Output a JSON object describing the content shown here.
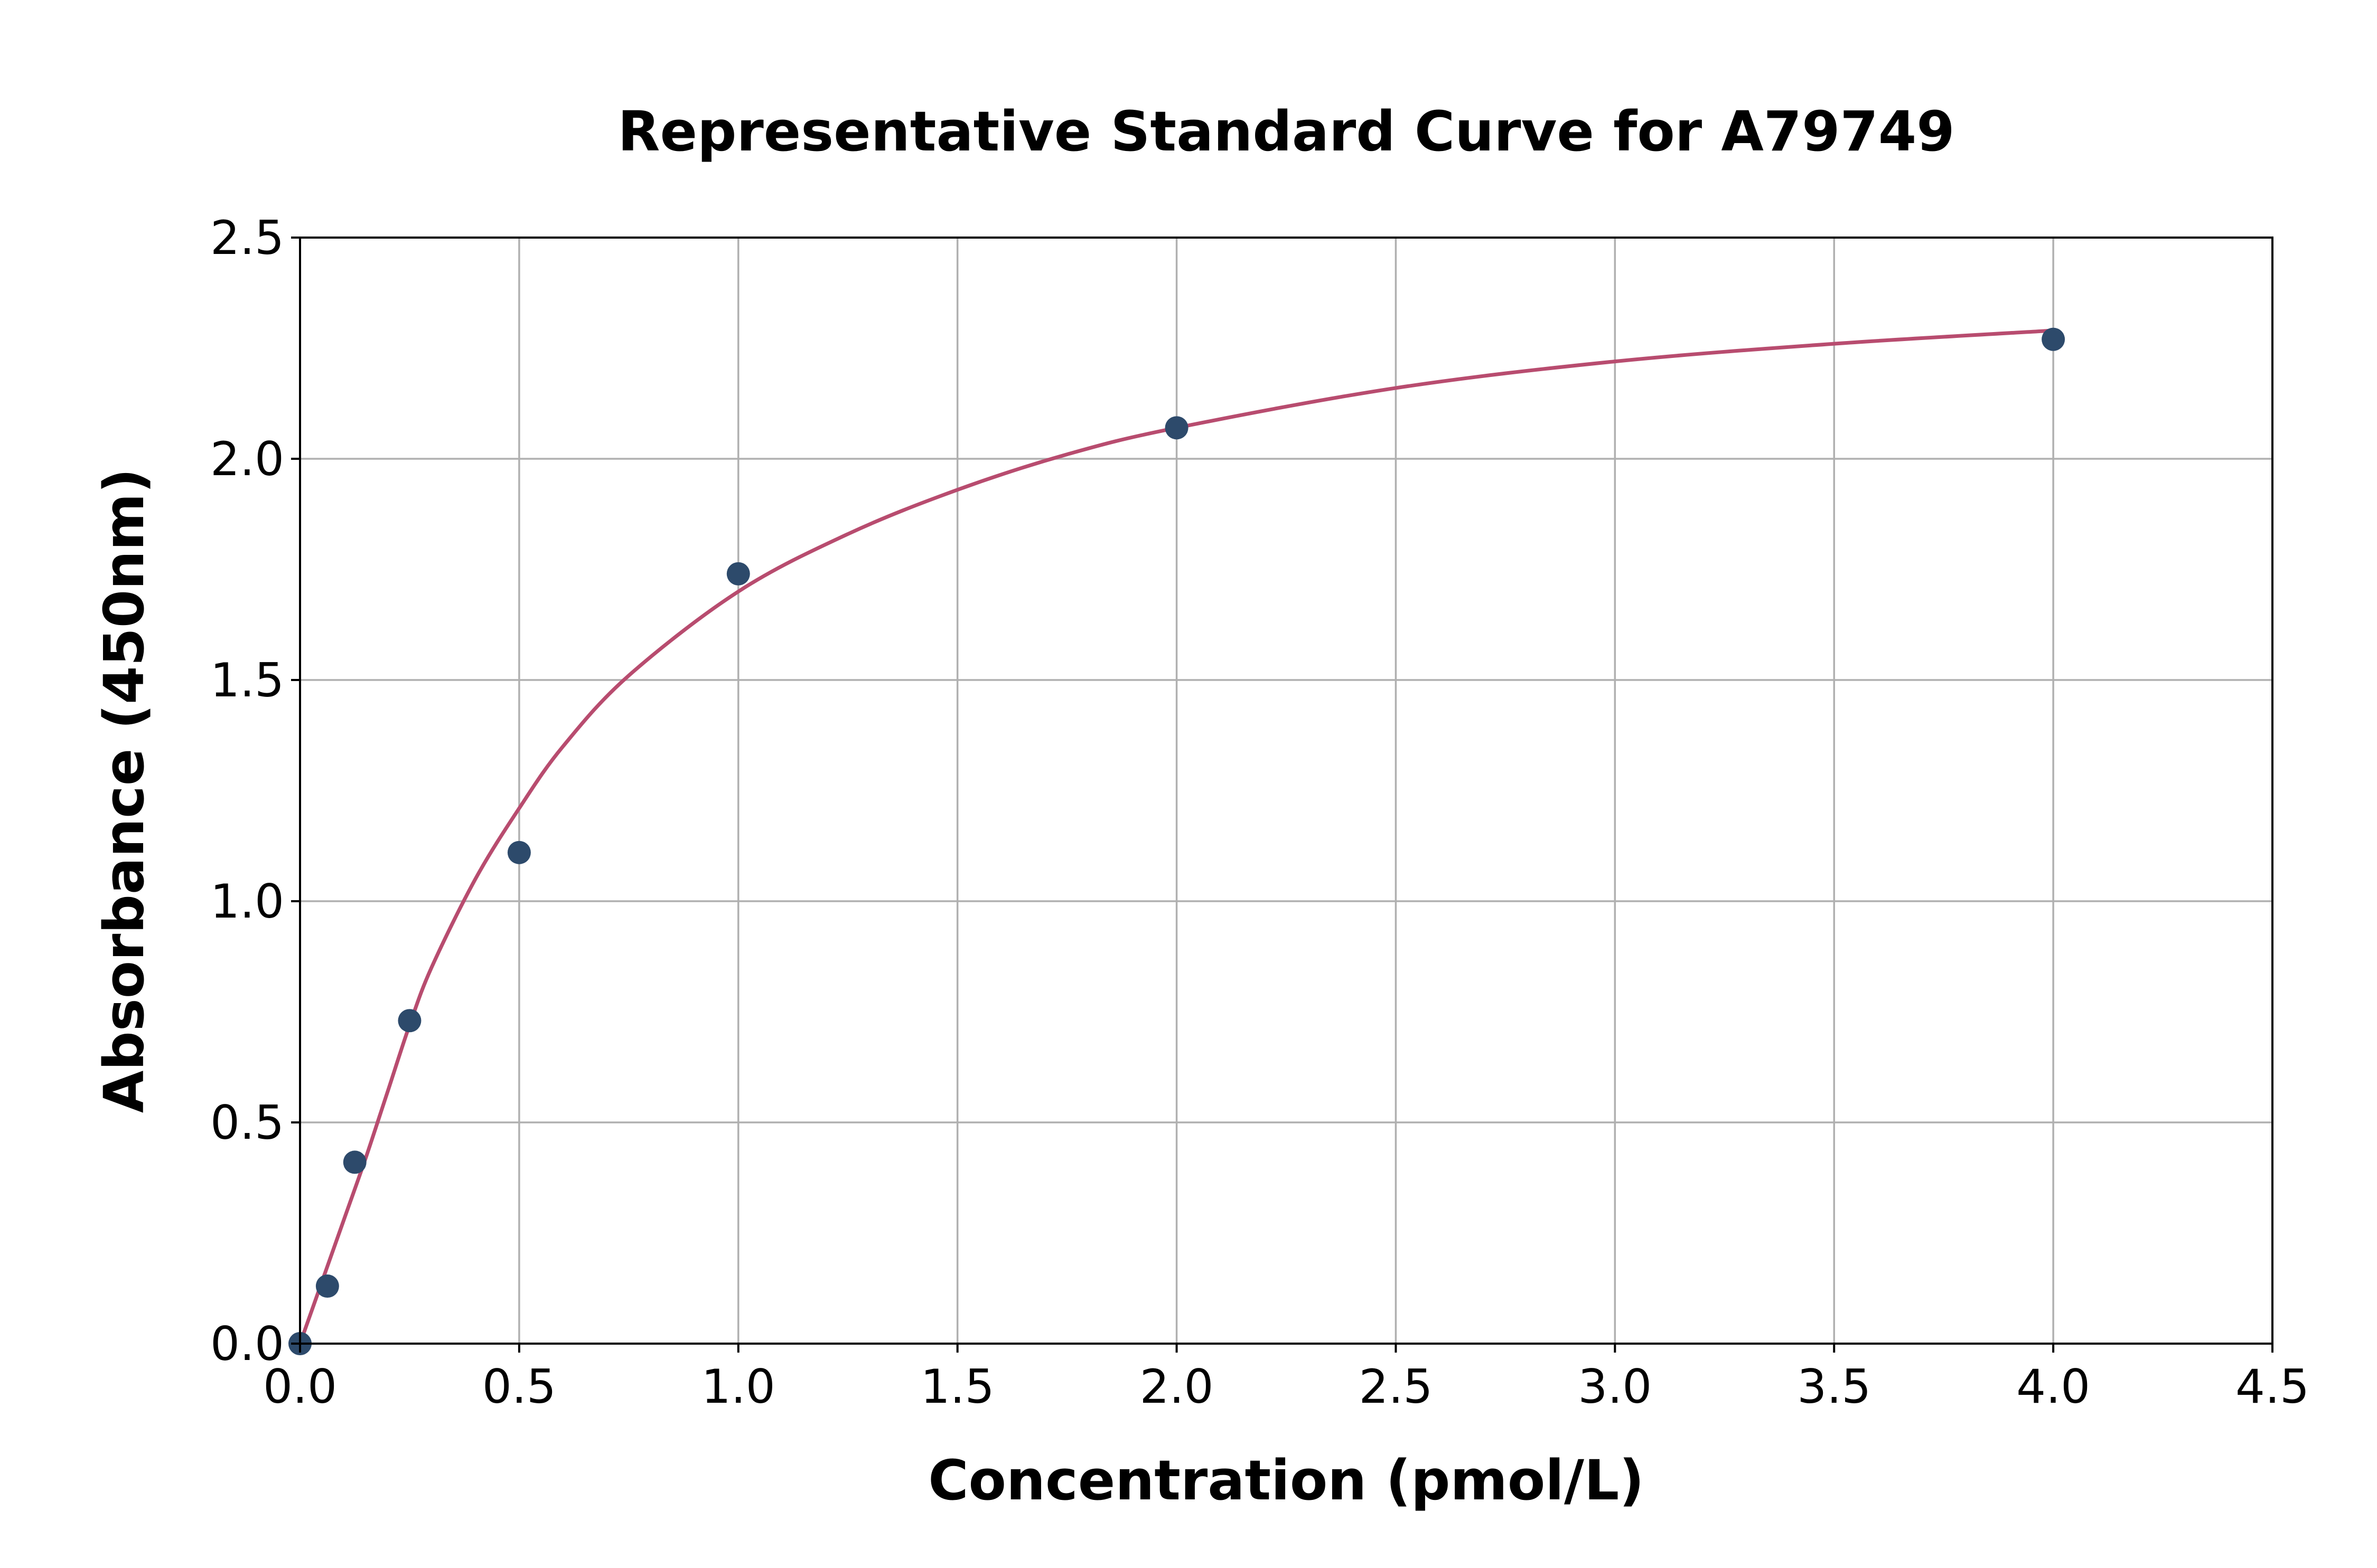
{
  "chart_data": {
    "type": "scatter",
    "title": "Representative Standard Curve for A79749",
    "xlabel": "Concentration (pmol/L)",
    "ylabel": "Absorbance (450nm)",
    "xlim": [
      0,
      4.5
    ],
    "ylim": [
      0,
      2.5
    ],
    "xticks": [
      "0.0",
      "0.5",
      "1.0",
      "1.5",
      "2.0",
      "2.5",
      "3.0",
      "3.5",
      "4.0",
      "4.5"
    ],
    "yticks": [
      "0.0",
      "0.5",
      "1.0",
      "1.5",
      "2.0",
      "2.5"
    ],
    "grid": true,
    "series": [
      {
        "kind": "points",
        "color": "#2d4a6b",
        "x": [
          0.0,
          0.0625,
          0.125,
          0.25,
          0.5,
          1.0,
          2.0,
          4.0
        ],
        "y": [
          0.0,
          0.13,
          0.41,
          0.73,
          1.11,
          1.74,
          2.07,
          2.27
        ]
      },
      {
        "kind": "fitted-curve",
        "color": "#b84c6f",
        "x": [
          0.0,
          0.05,
          0.1,
          0.15,
          0.2,
          0.25,
          0.3,
          0.4,
          0.5,
          0.6,
          0.75,
          1.0,
          1.25,
          1.5,
          1.75,
          2.0,
          2.5,
          3.0,
          3.5,
          4.0
        ],
        "y": [
          0.0,
          0.14,
          0.28,
          0.42,
          0.57,
          0.72,
          0.85,
          1.05,
          1.21,
          1.35,
          1.51,
          1.7,
          1.83,
          1.93,
          2.01,
          2.07,
          2.16,
          2.22,
          2.26,
          2.29
        ]
      }
    ]
  }
}
